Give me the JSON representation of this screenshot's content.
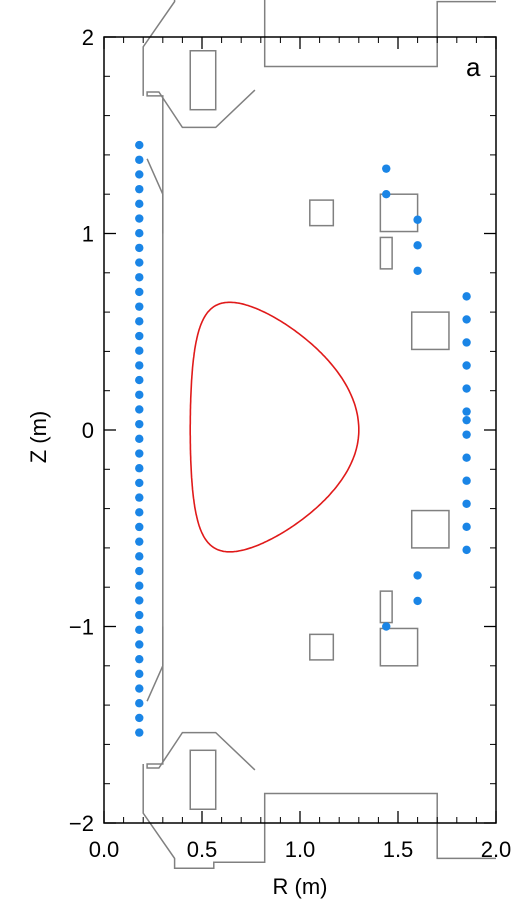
{
  "chart_data": {
    "type": "scatter",
    "panel_label": "a",
    "xlabel": "R (m)",
    "ylabel": "Z (m)",
    "xlim": [
      0.0,
      2.0
    ],
    "ylim": [
      -2.0,
      2.0
    ],
    "x_ticks": [
      {
        "value": 0.0,
        "label": "0.0"
      },
      {
        "value": 0.5,
        "label": "0.5"
      },
      {
        "value": 1.0,
        "label": "1.0"
      },
      {
        "value": 1.5,
        "label": "1.5"
      },
      {
        "value": 2.0,
        "label": "2.0"
      }
    ],
    "y_ticks": [
      {
        "value": -2,
        "label": "−2"
      },
      {
        "value": -1,
        "label": "−1"
      },
      {
        "value": 0,
        "label": "0"
      },
      {
        "value": 1,
        "label": "1"
      },
      {
        "value": 2,
        "label": "2"
      }
    ],
    "grid": false,
    "colors": {
      "probes": "#1a85e6",
      "plasma_boundary": "#e01a1a",
      "structure": "#808080",
      "axes": "#000000"
    },
    "probe_columns": [
      {
        "r": 0.18,
        "z_min": -1.54,
        "z_max": 1.45,
        "count": 41
      },
      {
        "r": 1.85,
        "z_min": -0.61,
        "z_max": 0.68,
        "count": 12
      }
    ],
    "probes_extra": [
      {
        "r": 1.44,
        "z": 1.33
      },
      {
        "r": 1.44,
        "z": 1.2
      },
      {
        "r": 1.6,
        "z": 1.07
      },
      {
        "r": 1.6,
        "z": 0.94
      },
      {
        "r": 1.6,
        "z": 0.81
      },
      {
        "r": 1.6,
        "z": -0.74
      },
      {
        "r": 1.6,
        "z": -0.87
      },
      {
        "r": 1.44,
        "z": -1.0
      },
      {
        "r": 1.85,
        "z": 0.05
      }
    ],
    "plasma_boundary": {
      "r0": 0.87,
      "a": 0.43,
      "kappa": 1.52,
      "delta": 0.56,
      "inner_r": 0.44,
      "outer_r": 1.3,
      "z_top": 0.65,
      "z_bottom": -0.62
    },
    "coils": [
      {
        "r0": 0.44,
        "r1": 0.57,
        "z0": 1.63,
        "z1": 1.93
      },
      {
        "r0": 0.44,
        "r1": 0.57,
        "z0": -1.93,
        "z1": -1.63
      },
      {
        "r0": 1.05,
        "r1": 1.17,
        "z0": 1.04,
        "z1": 1.17
      },
      {
        "r0": 1.05,
        "r1": 1.17,
        "z0": -1.17,
        "z1": -1.04
      },
      {
        "r0": 1.41,
        "r1": 1.6,
        "z0": 1.01,
        "z1": 1.2
      },
      {
        "r0": 1.41,
        "r1": 1.6,
        "z0": -1.2,
        "z1": -1.01
      },
      {
        "r0": 1.41,
        "r1": 1.47,
        "z0": 0.82,
        "z1": 0.98
      },
      {
        "r0": 1.41,
        "r1": 1.47,
        "z0": -0.98,
        "z1": -0.82
      },
      {
        "r0": 1.57,
        "r1": 1.76,
        "z0": 0.41,
        "z1": 0.6
      },
      {
        "r0": 1.57,
        "r1": 1.76,
        "z0": -0.6,
        "z1": -0.41
      }
    ],
    "vessel_upper": [
      [
        0.2,
        1.7
      ],
      [
        0.2,
        1.95
      ],
      [
        0.36,
        2.18
      ],
      [
        0.36,
        2.23
      ],
      [
        0.56,
        2.23
      ],
      [
        0.56,
        2.2
      ],
      [
        0.82,
        2.2
      ],
      [
        0.82,
        1.85
      ],
      [
        1.7,
        1.85
      ],
      [
        1.7,
        2.18
      ],
      [
        2.0,
        2.18
      ]
    ],
    "vessel_lower": [
      [
        0.2,
        -1.7
      ],
      [
        0.2,
        -1.95
      ],
      [
        0.36,
        -2.18
      ],
      [
        0.36,
        -2.23
      ],
      [
        0.56,
        -2.23
      ],
      [
        0.56,
        -2.2
      ],
      [
        0.82,
        -2.2
      ],
      [
        0.82,
        -1.85
      ],
      [
        1.7,
        -1.85
      ],
      [
        1.7,
        -2.18
      ],
      [
        2.0,
        -2.18
      ]
    ],
    "inner_wall_upper": [
      [
        0.3,
        1.0
      ],
      [
        0.3,
        1.7
      ],
      [
        0.22,
        1.7
      ],
      [
        0.22,
        1.72
      ],
      [
        0.28,
        1.72
      ],
      [
        0.4,
        1.54
      ],
      [
        0.57,
        1.54
      ],
      [
        0.77,
        1.73
      ]
    ],
    "inner_wall_lower": [
      [
        0.3,
        -1.0
      ],
      [
        0.3,
        -1.7
      ],
      [
        0.22,
        -1.7
      ],
      [
        0.22,
        -1.72
      ],
      [
        0.28,
        -1.72
      ],
      [
        0.4,
        -1.54
      ],
      [
        0.57,
        -1.54
      ],
      [
        0.77,
        -1.73
      ]
    ],
    "inner_wall_taper": [
      [
        0.22,
        1.38
      ],
      [
        0.3,
        1.2
      ],
      [
        0.3,
        -1.2
      ],
      [
        0.22,
        -1.38
      ]
    ]
  }
}
